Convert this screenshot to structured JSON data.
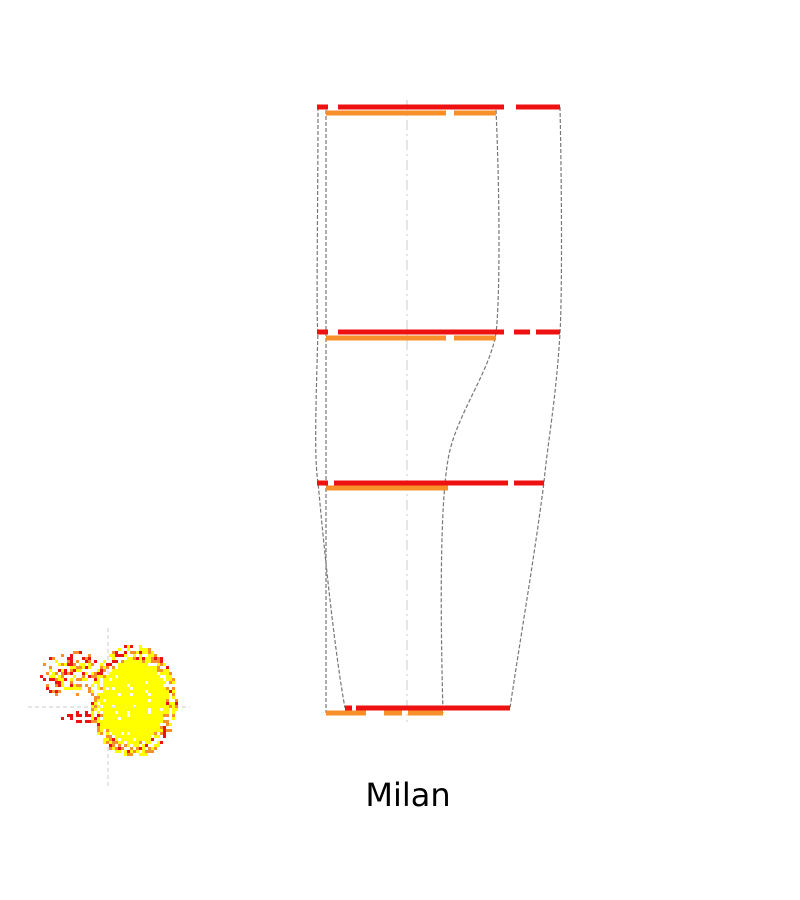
{
  "city_label": "Milan",
  "colors": {
    "red": "#ee1111",
    "orange": "#f7902a",
    "yellow": "#ffff00",
    "gray": "#777777",
    "light_gray": "#cccccc"
  }
}
